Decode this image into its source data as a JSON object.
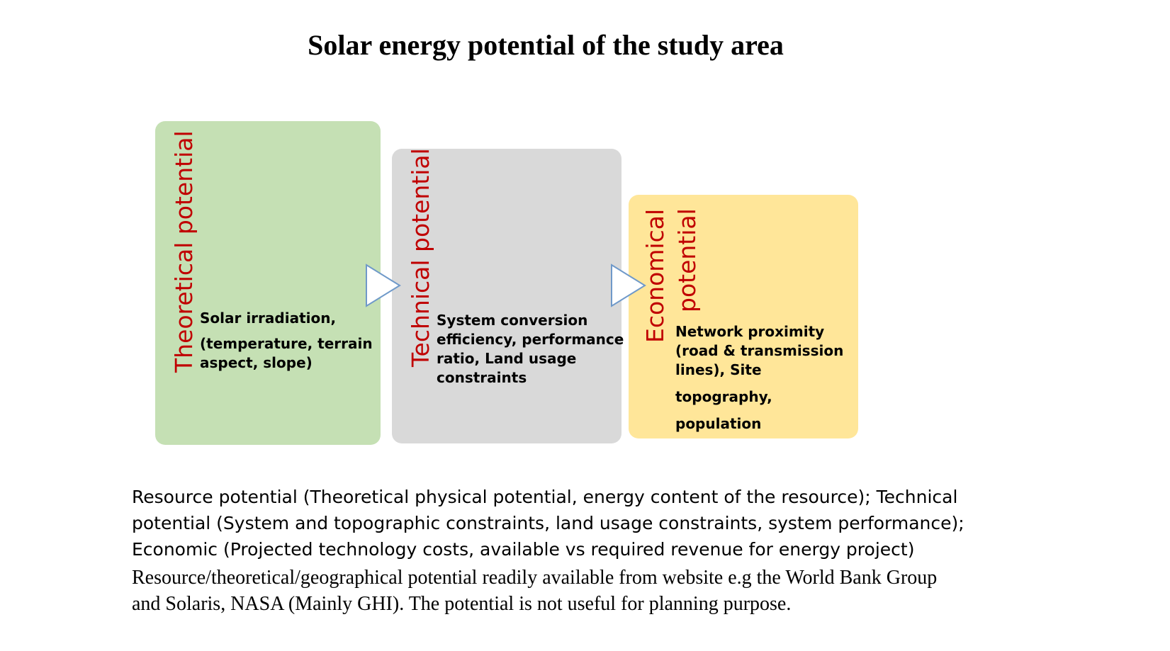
{
  "title": "Solar energy potential of the study area",
  "colors": {
    "green_box": "#c5e0b4",
    "gray_box": "#d9d9d9",
    "yellow_box": "#ffe699",
    "label_red": "#c00000",
    "arrow_stroke": "#6f99c9",
    "arrow_fill": "#ffffff"
  },
  "stages": [
    {
      "label": "Theoretical potential",
      "lines": [
        "Solar irradiation,",
        "(temperature, terrain",
        "aspect, slope)"
      ]
    },
    {
      "label": "Technical potential",
      "lines": [
        "System conversion",
        "efficiency, performance",
        "ratio, Land usage",
        "constraints"
      ]
    },
    {
      "label_line1": "Economical",
      "label_line2": "potential",
      "lines": [
        "Network proximity",
        "(road & transmission",
        "lines), Site",
        "topography,",
        "population"
      ]
    }
  ],
  "caption": {
    "sans_lines": [
      "Resource potential (Theoretical physical potential, energy content of the resource); Technical",
      "potential (System and topographic constraints, land usage constraints, system performance);",
      "Economic (Projected technology costs, available vs required revenue for energy project)"
    ],
    "serif_lines": [
      "Resource/theoretical/geographical potential readily available from website e.g  the World Bank Group",
      "and Solaris, NASA (Mainly GHI). The potential is not useful for planning purpose."
    ]
  }
}
